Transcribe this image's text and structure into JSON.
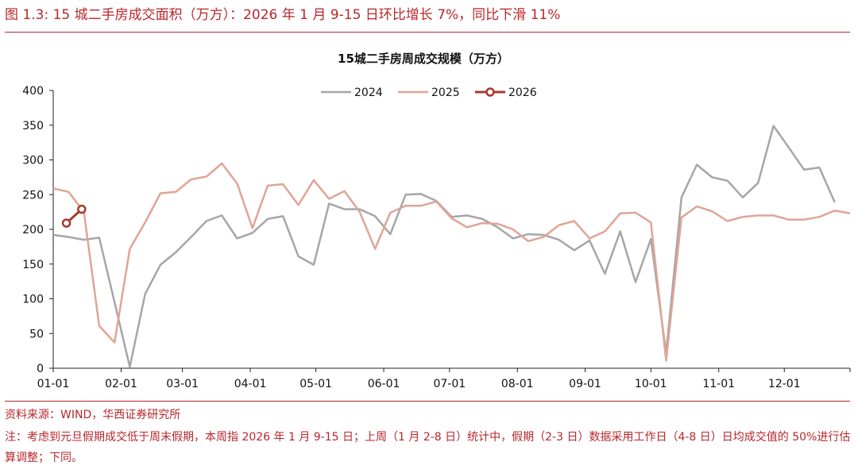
{
  "figure": {
    "title": "图 1.3:  15 城二手房成交面积（万方）：2026 年 1 月 9-15 日环比增长 7%，同比下滑 11%",
    "source": "资料来源：WIND，华西证券研究所",
    "note": "注：考虑到元旦假期成交低于周末假期，本周指 2026 年 1 月 9-15 日；上周（1 月 2-8 日）统计中，假期（2-3 日）数据采用工作日（4-8 日）日均成交值的 50%进行估算调整；下同。"
  },
  "colors": {
    "accent": "#b8262b",
    "s2024": "#a6a6a6",
    "s2025": "#e0a496",
    "s2026": "#a83a2c"
  },
  "chart_data": {
    "type": "line",
    "title": "15城二手房周成交规模（万方）",
    "xlabel": "",
    "ylabel": "",
    "x_unit": "week",
    "xlim": [
      0,
      52
    ],
    "ylim": [
      0,
      400
    ],
    "yticks": [
      0,
      50,
      100,
      150,
      200,
      250,
      300,
      350,
      400
    ],
    "xtick_labels": [
      "01-01",
      "02-01",
      "03-01",
      "04-01",
      "05-01",
      "06-01",
      "07-01",
      "08-01",
      "09-01",
      "10-01",
      "11-01",
      "12-01"
    ],
    "xtick_weeks": [
      0,
      4.43,
      8.43,
      12.86,
      17.14,
      21.57,
      25.86,
      30.29,
      34.71,
      39.0,
      43.43,
      47.71
    ],
    "grid": false,
    "legend_position": "top-center",
    "series": [
      {
        "name": "2024",
        "x": [
          0,
          1,
          2,
          3,
          4,
          5,
          6,
          7,
          8,
          9,
          10,
          11,
          12,
          13,
          14,
          15,
          16,
          17,
          18,
          19,
          20,
          21,
          22,
          23,
          24,
          25,
          26,
          27,
          28,
          29,
          30,
          31,
          32,
          33,
          34,
          35,
          36,
          37,
          38,
          39,
          40,
          41,
          42,
          43,
          44,
          45,
          46,
          47,
          48,
          49,
          50,
          51
        ],
        "values": [
          192,
          189,
          185,
          188,
          95,
          2,
          107,
          149,
          167,
          189,
          212,
          220,
          187,
          195,
          215,
          219,
          161,
          149,
          237,
          229,
          229,
          219,
          193,
          250,
          251,
          241,
          218,
          220,
          215,
          203,
          187,
          193,
          192,
          185,
          170,
          184,
          136,
          197,
          124,
          186,
          22,
          246,
          293,
          275,
          270,
          246,
          267,
          349,
          318,
          286,
          289,
          239
        ]
      },
      {
        "name": "2025",
        "x": [
          0,
          1,
          2,
          3,
          4,
          5,
          6,
          7,
          8,
          9,
          10,
          11,
          12,
          13,
          14,
          15,
          16,
          17,
          18,
          19,
          20,
          21,
          22,
          23,
          24,
          25,
          26,
          27,
          28,
          29,
          30,
          31,
          32,
          33,
          34,
          35,
          36,
          37,
          38,
          39,
          40,
          41,
          42,
          43,
          44,
          45,
          46,
          47,
          48,
          49,
          50,
          51,
          52
        ],
        "values": [
          259,
          254,
          225,
          61,
          37,
          172,
          210,
          252,
          254,
          272,
          276,
          295,
          266,
          202,
          263,
          265,
          235,
          271,
          244,
          255,
          225,
          172,
          224,
          234,
          234,
          240,
          216,
          203,
          209,
          208,
          200,
          183,
          189,
          206,
          212,
          187,
          197,
          223,
          224,
          210,
          11,
          217,
          233,
          226,
          212,
          218,
          220,
          220,
          214,
          214,
          218,
          227,
          223
        ]
      },
      {
        "name": "2026",
        "x": [
          0.86,
          1.86
        ],
        "values": [
          209,
          229
        ],
        "markers": true
      }
    ]
  }
}
